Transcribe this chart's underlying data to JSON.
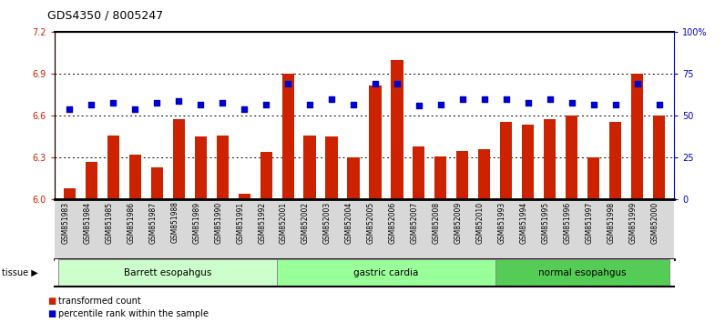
{
  "title": "GDS4350 / 8005247",
  "samples": [
    "GSM851983",
    "GSM851984",
    "GSM851985",
    "GSM851986",
    "GSM851987",
    "GSM851988",
    "GSM851989",
    "GSM851990",
    "GSM851991",
    "GSM851992",
    "GSM852001",
    "GSM852002",
    "GSM852003",
    "GSM852004",
    "GSM852005",
    "GSM852006",
    "GSM852007",
    "GSM852008",
    "GSM852009",
    "GSM852010",
    "GSM851993",
    "GSM851994",
    "GSM851995",
    "GSM851996",
    "GSM851997",
    "GSM851998",
    "GSM851999",
    "GSM852000"
  ],
  "bar_values": [
    6.08,
    6.27,
    6.46,
    6.32,
    6.23,
    6.58,
    6.45,
    6.46,
    6.04,
    6.34,
    6.9,
    6.46,
    6.45,
    6.3,
    6.82,
    7.0,
    6.38,
    6.31,
    6.35,
    6.36,
    6.56,
    6.54,
    6.58,
    6.6,
    6.3,
    6.56,
    6.9,
    6.6
  ],
  "dot_values": [
    54,
    57,
    58,
    54,
    58,
    59,
    57,
    58,
    54,
    57,
    69,
    57,
    60,
    57,
    69,
    69,
    56,
    57,
    60,
    60,
    60,
    58,
    60,
    58,
    57,
    57,
    69,
    57
  ],
  "groups": [
    {
      "label": "Barrett esopahgus",
      "start": 0,
      "end": 9,
      "color": "#ccffcc"
    },
    {
      "label": "gastric cardia",
      "start": 10,
      "end": 19,
      "color": "#99ff99"
    },
    {
      "label": "normal esopahgus",
      "start": 20,
      "end": 27,
      "color": "#55cc55"
    }
  ],
  "bar_color": "#cc2200",
  "dot_color": "#0000cc",
  "ylim_left": [
    6.0,
    7.2
  ],
  "ylim_right": [
    0,
    100
  ],
  "yticks_left": [
    6.0,
    6.3,
    6.6,
    6.9,
    7.2
  ],
  "yticks_right": [
    0,
    25,
    50,
    75,
    100
  ],
  "ytick_labels_right": [
    "0",
    "25",
    "50",
    "75",
    "100%"
  ],
  "hlines": [
    6.3,
    6.6,
    6.9
  ],
  "bg_color": "#d8d8d8",
  "plot_bg": "#ffffff",
  "legend_bar_label": "transformed count",
  "legend_dot_label": "percentile rank within the sample",
  "tissue_label": "tissue",
  "title_fontsize": 9,
  "tick_fontsize": 7
}
